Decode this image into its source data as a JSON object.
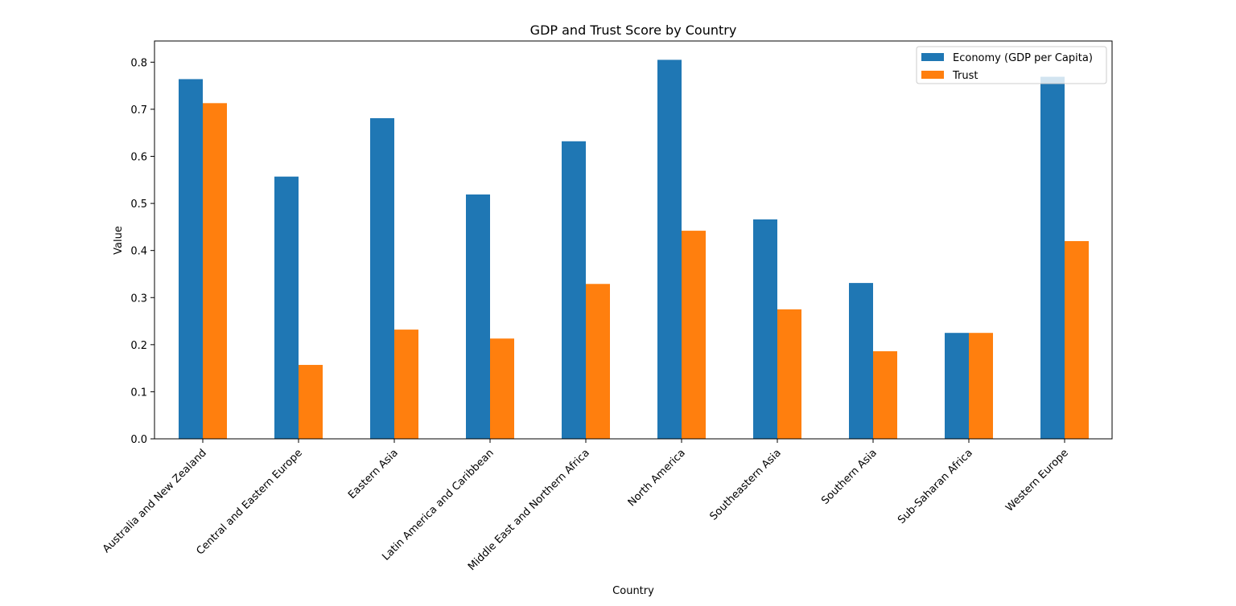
{
  "chart_data": {
    "type": "bar",
    "title": "GDP and Trust Score by Country",
    "xlabel": "Country",
    "ylabel": "Value",
    "ylim": [
      0,
      0.845
    ],
    "yticks": [
      0.0,
      0.1,
      0.2,
      0.3,
      0.4,
      0.5,
      0.6,
      0.7,
      0.8
    ],
    "ytick_labels": [
      "0.0",
      "0.1",
      "0.2",
      "0.3",
      "0.4",
      "0.5",
      "0.6",
      "0.7",
      "0.8"
    ],
    "grid": false,
    "legend_position": "top-right",
    "categories": [
      "Australia and New Zealand",
      "Central and Eastern Europe",
      "Eastern Asia",
      "Latin America and Caribbean",
      "Middle East and Northern Africa",
      "North America",
      "Southeastern Asia",
      "Southern Asia",
      "Sub-Saharan Africa",
      "Western Europe"
    ],
    "series": [
      {
        "name": "Economy (GDP per Capita)",
        "color": "#1f77b4",
        "values": [
          0.764,
          0.557,
          0.681,
          0.519,
          0.632,
          0.805,
          0.466,
          0.331,
          0.225,
          0.769
        ]
      },
      {
        "name": "Trust",
        "color": "#ff7f0e",
        "values": [
          0.713,
          0.157,
          0.232,
          0.213,
          0.329,
          0.442,
          0.275,
          0.186,
          0.225,
          0.42
        ]
      }
    ]
  }
}
